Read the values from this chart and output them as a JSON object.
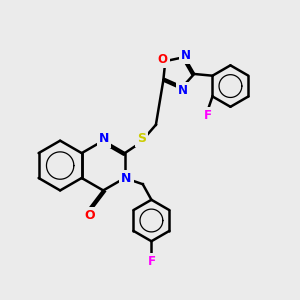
{
  "background_color": "#ebebeb",
  "atom_colors": {
    "C": "#000000",
    "N": "#0000ff",
    "O": "#ff0000",
    "S": "#cccc00",
    "F": "#ff00ff"
  },
  "bond_color": "#000000",
  "bond_width": 1.8,
  "font_size": 8.5,
  "dbl_sep": 0.055
}
